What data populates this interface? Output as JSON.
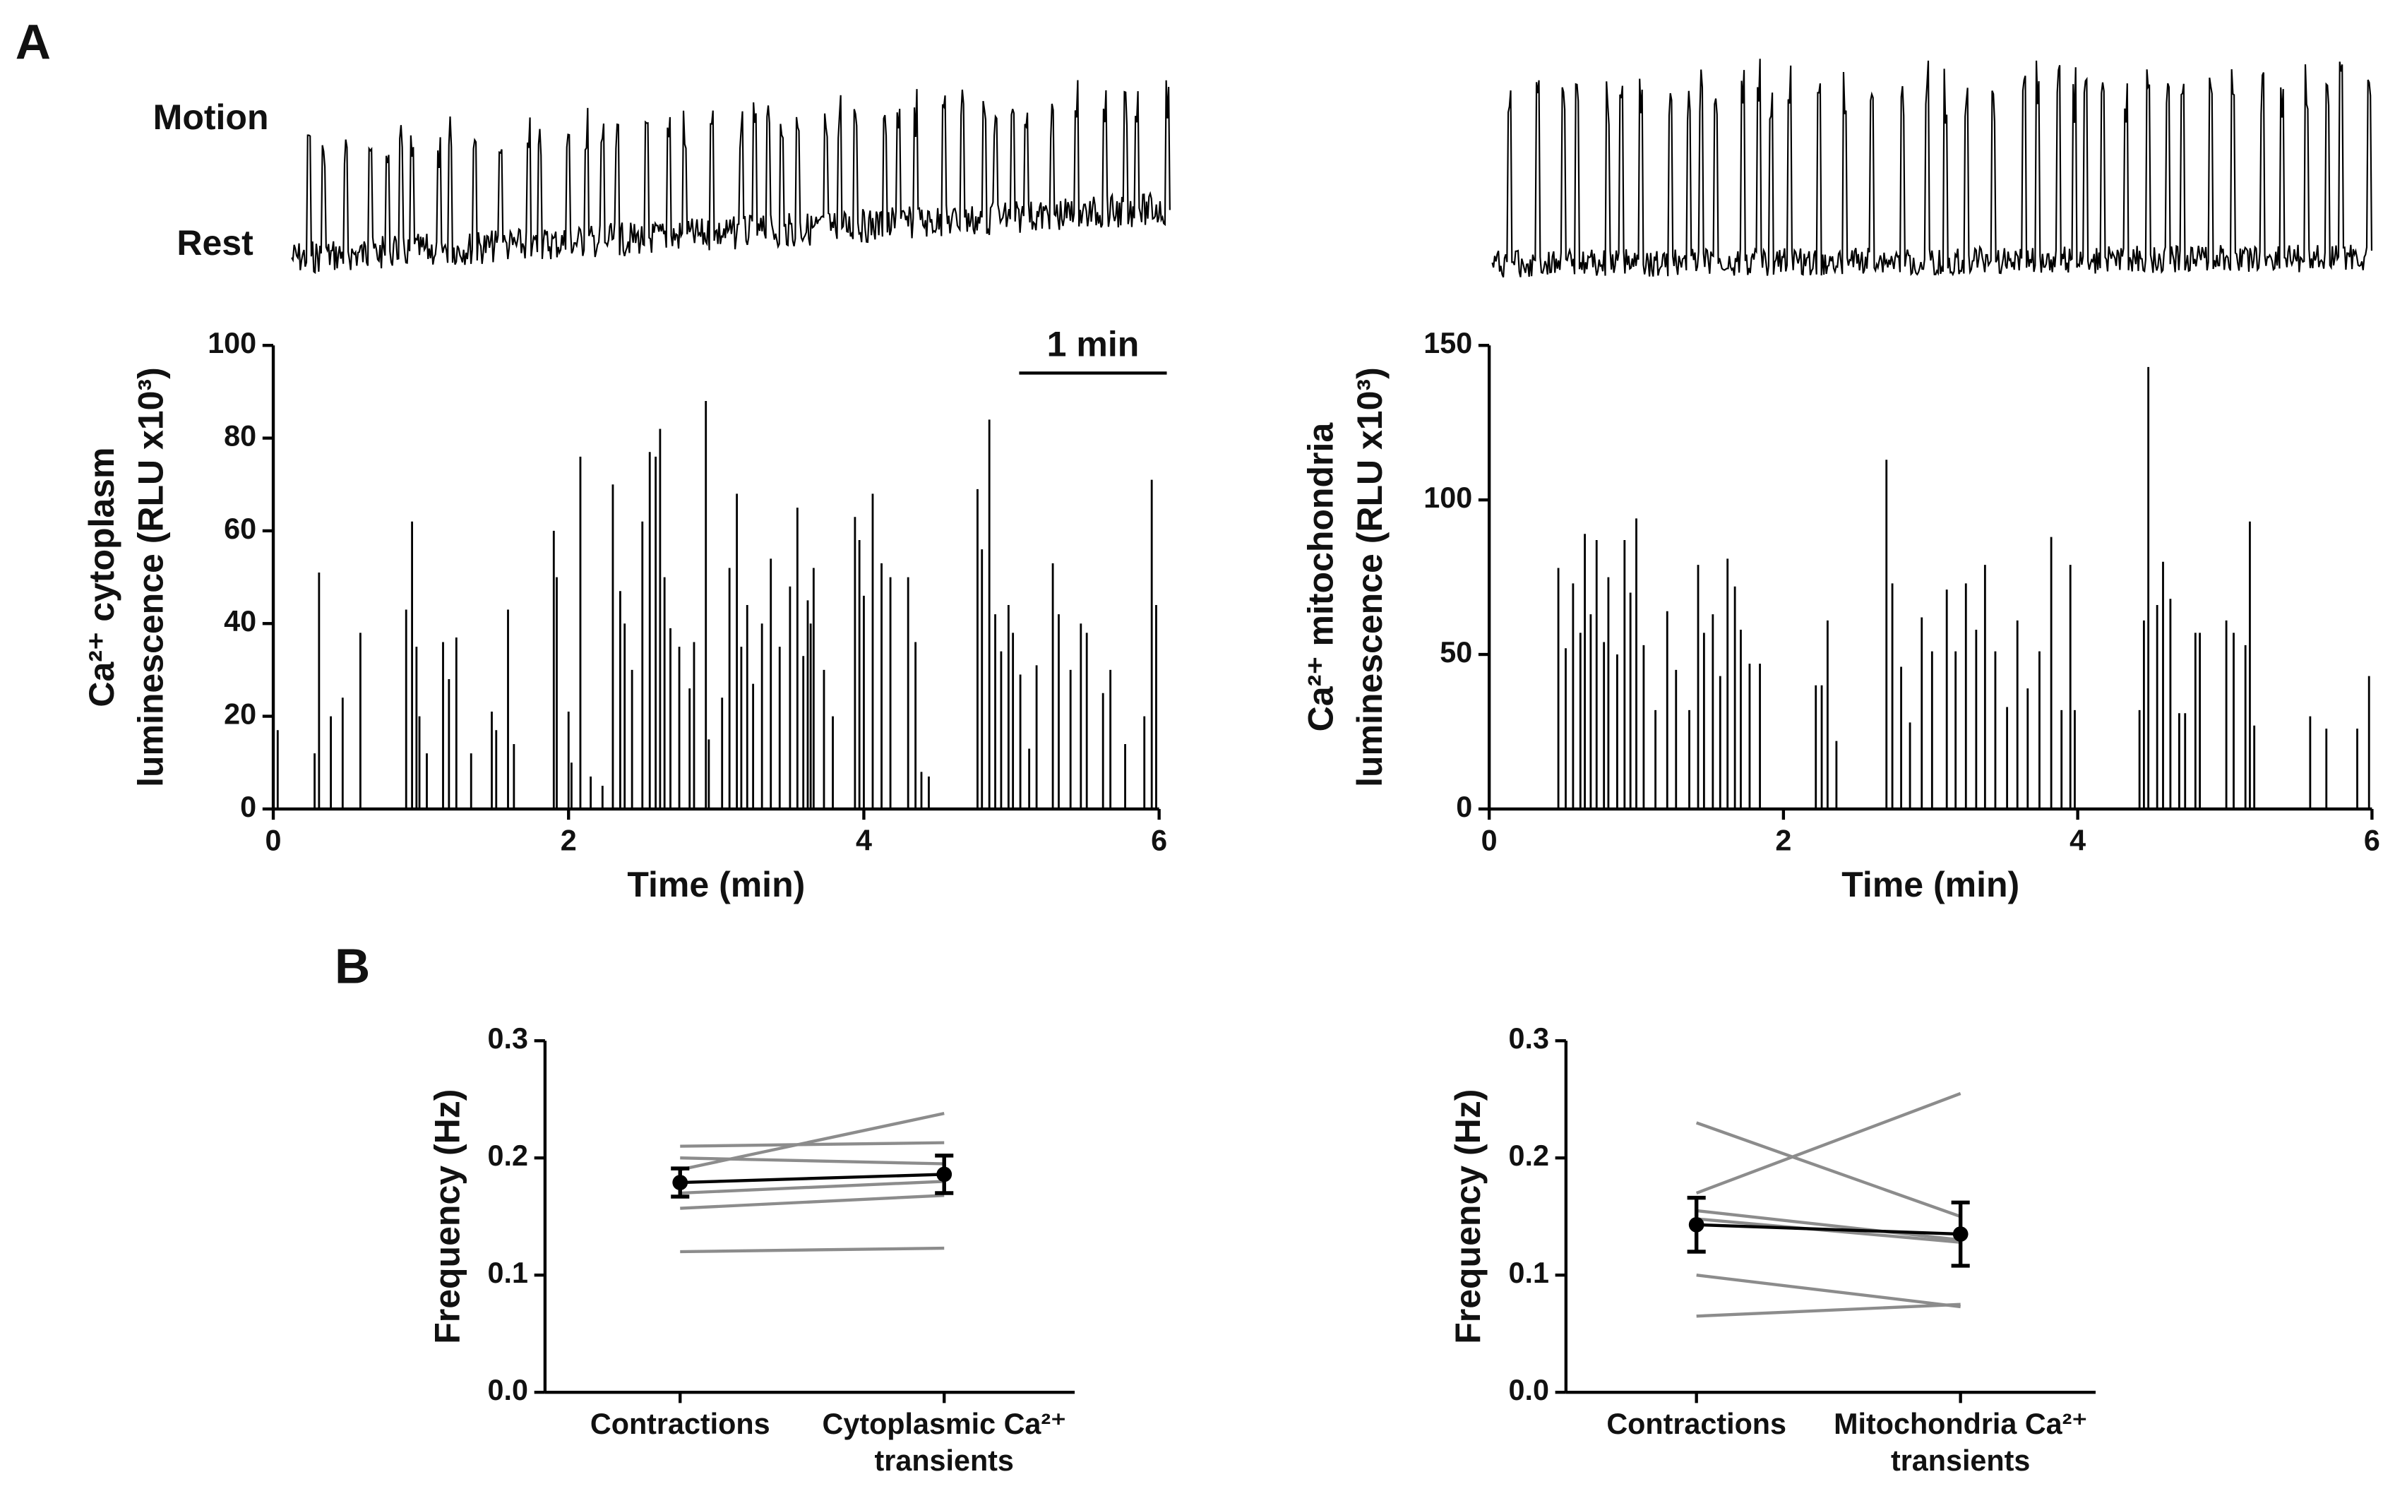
{
  "panel_labels": [
    "A",
    "B"
  ],
  "chart_data": [
    {
      "type": "spike",
      "trace_labels": [
        "Motion",
        "Rest"
      ],
      "scalebar_label": "1 min",
      "scalebar_length": 1,
      "ylabel": [
        "Ca²⁺ cytoplasm",
        "luminescence (RLU x10³)"
      ],
      "xlabel": "Time (min)",
      "color": "#000000",
      "xlim": [
        0,
        6
      ],
      "xticks": [
        0,
        2,
        4,
        6
      ],
      "ylim": [
        0,
        100
      ],
      "yticks": [
        0,
        20,
        40,
        60,
        80,
        100
      ],
      "x": [
        0.03,
        0.28,
        0.31,
        0.39,
        0.47,
        0.59,
        0.9,
        0.94,
        0.97,
        0.99,
        1.04,
        1.15,
        1.19,
        1.24,
        1.34,
        1.48,
        1.51,
        1.59,
        1.63,
        1.9,
        1.92,
        2.0,
        2.02,
        2.08,
        2.15,
        2.23,
        2.3,
        2.35,
        2.38,
        2.43,
        2.5,
        2.55,
        2.59,
        2.62,
        2.65,
        2.69,
        2.75,
        2.82,
        2.85,
        2.93,
        2.95,
        3.04,
        3.09,
        3.14,
        3.17,
        3.21,
        3.25,
        3.31,
        3.37,
        3.43,
        3.5,
        3.55,
        3.59,
        3.62,
        3.64,
        3.66,
        3.73,
        3.79,
        3.94,
        3.97,
        4.0,
        4.06,
        4.12,
        4.18,
        4.3,
        4.35,
        4.39,
        4.44,
        4.77,
        4.8,
        4.85,
        4.89,
        4.93,
        4.98,
        5.01,
        5.06,
        5.12,
        5.17,
        5.28,
        5.32,
        5.4,
        5.47,
        5.51,
        5.62,
        5.67,
        5.77,
        5.9,
        5.95,
        5.98
      ],
      "values": [
        17,
        12,
        51,
        20,
        24,
        38,
        43,
        62,
        35,
        20,
        12,
        36,
        28,
        37,
        12,
        21,
        17,
        43,
        14,
        60,
        50,
        21,
        10,
        76,
        7,
        5,
        70,
        47,
        40,
        30,
        62,
        77,
        76,
        82,
        50,
        39,
        35,
        26,
        36,
        88,
        15,
        24,
        52,
        68,
        35,
        44,
        27,
        40,
        54,
        35,
        48,
        65,
        33,
        45,
        40,
        52,
        30,
        20,
        63,
        58,
        46,
        68,
        53,
        50,
        50,
        36,
        8,
        7,
        69,
        56,
        84,
        42,
        34,
        44,
        38,
        29,
        13,
        31,
        53,
        42,
        30,
        40,
        38,
        25,
        30,
        14,
        20,
        71,
        44
      ]
    },
    {
      "type": "spike",
      "ylabel": [
        "Ca²⁺ mitochondria",
        "luminescence (RLU x10³)"
      ],
      "xlabel": "Time (min)",
      "color": "#000000",
      "xlim": [
        0,
        6
      ],
      "xticks": [
        0,
        2,
        4,
        6
      ],
      "ylim": [
        0,
        150
      ],
      "yticks": [
        0,
        50,
        100,
        150
      ],
      "x": [
        0.47,
        0.52,
        0.57,
        0.62,
        0.65,
        0.69,
        0.73,
        0.78,
        0.81,
        0.87,
        0.92,
        0.96,
        1.0,
        1.05,
        1.13,
        1.21,
        1.27,
        1.36,
        1.42,
        1.46,
        1.52,
        1.57,
        1.62,
        1.67,
        1.71,
        1.77,
        1.84,
        2.22,
        2.26,
        2.3,
        2.36,
        2.7,
        2.74,
        2.8,
        2.86,
        2.94,
        3.01,
        3.11,
        3.17,
        3.24,
        3.31,
        3.37,
        3.44,
        3.52,
        3.59,
        3.66,
        3.74,
        3.82,
        3.89,
        3.95,
        3.98,
        4.42,
        4.45,
        4.48,
        4.54,
        4.58,
        4.63,
        4.69,
        4.73,
        4.8,
        4.83,
        5.01,
        5.06,
        5.14,
        5.17,
        5.2,
        5.58,
        5.69,
        5.9,
        5.98
      ],
      "values": [
        78,
        52,
        73,
        57,
        89,
        63,
        87,
        54,
        75,
        50,
        87,
        70,
        94,
        53,
        32,
        64,
        45,
        32,
        79,
        57,
        63,
        43,
        81,
        72,
        58,
        47,
        47,
        40,
        40,
        61,
        22,
        113,
        73,
        46,
        28,
        62,
        51,
        71,
        51,
        73,
        58,
        79,
        51,
        33,
        61,
        39,
        51,
        88,
        32,
        79,
        32,
        32,
        61,
        143,
        66,
        80,
        68,
        31,
        31,
        57,
        57,
        61,
        57,
        53,
        93,
        27,
        30,
        26,
        26,
        43
      ]
    },
    {
      "type": "line",
      "ylabel": "Frequency (Hz)",
      "categories": [
        [
          "Contractions"
        ],
        [
          "Cytoplasmic Ca²⁺",
          "transients"
        ]
      ],
      "ylim": [
        0,
        0.3
      ],
      "yticks": [
        {
          "value": 0,
          "label": "0.0"
        },
        0.1,
        0.2,
        0.3
      ],
      "series": [
        {
          "color": "#8c8c8c",
          "values": [
            0.12,
            0.123
          ]
        },
        {
          "color": "#8c8c8c",
          "values": [
            0.157,
            0.168
          ]
        },
        {
          "color": "#8c8c8c",
          "values": [
            0.17,
            0.18
          ]
        },
        {
          "color": "#8c8c8c",
          "values": [
            0.19,
            0.238
          ]
        },
        {
          "color": "#8c8c8c",
          "values": [
            0.2,
            0.195
          ]
        },
        {
          "color": "#8c8c8c",
          "values": [
            0.21,
            0.213
          ]
        },
        {
          "color": "#000000",
          "values": [
            0.179,
            0.186
          ],
          "errors": [
            0.012,
            0.016
          ]
        }
      ]
    },
    {
      "type": "line",
      "ylabel": "Frequency (Hz)",
      "categories": [
        [
          "Contractions"
        ],
        [
          "Mitochondria Ca²⁺",
          "transients"
        ]
      ],
      "ylim": [
        0,
        0.3
      ],
      "yticks": [
        {
          "value": 0,
          "label": "0.0"
        },
        0.1,
        0.2,
        0.3
      ],
      "series": [
        {
          "color": "#8c8c8c",
          "values": [
            0.065,
            0.075
          ]
        },
        {
          "color": "#8c8c8c",
          "values": [
            0.1,
            0.073
          ]
        },
        {
          "color": "#8c8c8c",
          "values": [
            0.17,
            0.255
          ]
        },
        {
          "color": "#8c8c8c",
          "values": [
            0.23,
            0.15
          ]
        },
        {
          "color": "#8c8c8c",
          "values": [
            0.155,
            0.13
          ]
        },
        {
          "color": "#8c8c8c",
          "values": [
            0.148,
            0.128
          ]
        },
        {
          "color": "#000000",
          "values": [
            0.143,
            0.135
          ],
          "errors": [
            0.023,
            0.027
          ]
        }
      ]
    }
  ]
}
